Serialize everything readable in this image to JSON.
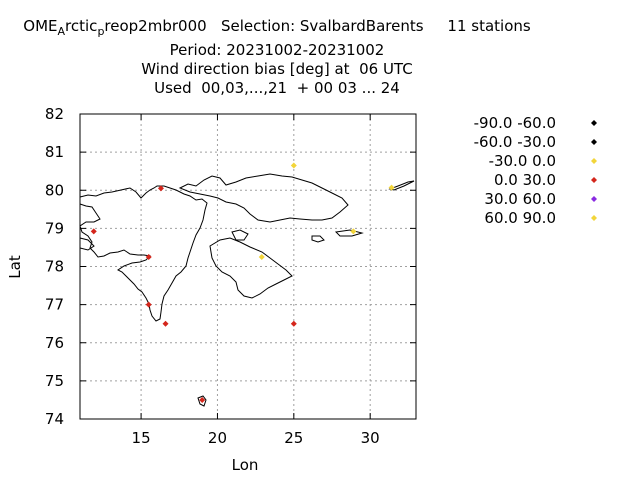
{
  "title": {
    "line1_a": "OME",
    "line1_sub_a": "A",
    "line1_b": "rctic",
    "line1_sub_b": "p",
    "line1_c": "reop2mbr000   Selection: SvalbardBarents     11 stations",
    "line2": "Period: 20231002-20231002",
    "line3": "Wind direction bias [deg] at  06 UTC",
    "line4": "Used  00,03,...,21  + 00 03 ... 24"
  },
  "chart_data": {
    "type": "scatter",
    "title": "Wind direction bias [deg] at  06 UTC",
    "xlabel": "Lon",
    "ylabel": "Lat",
    "xlim": [
      11,
      33
    ],
    "ylim": [
      74,
      82
    ],
    "xticks": [
      15,
      20,
      25,
      30
    ],
    "yticks": [
      74,
      75,
      76,
      77,
      78,
      79,
      80,
      81,
      82
    ],
    "grid": true,
    "legend_position": "right",
    "legend": [
      {
        "label": "-90.0 -60.0",
        "color": "#000000"
      },
      {
        "label": "-60.0 -30.0",
        "color": "#000000"
      },
      {
        "label": "-30.0 0.0",
        "color": "#f2d53a"
      },
      {
        "label": "0.0 30.0",
        "color": "#d4261c"
      },
      {
        "label": "30.0 60.0",
        "color": "#8a2be2"
      },
      {
        "label": "60.0 90.0",
        "color": "#f2d53a"
      }
    ],
    "points": [
      {
        "lon": 16.3,
        "lat": 80.05,
        "class": "0.0 30.0"
      },
      {
        "lon": 11.9,
        "lat": 78.92,
        "class": "0.0 30.0"
      },
      {
        "lon": 15.5,
        "lat": 78.25,
        "class": "0.0 30.0"
      },
      {
        "lon": 15.5,
        "lat": 77.0,
        "class": "0.0 30.0"
      },
      {
        "lon": 16.6,
        "lat": 76.5,
        "class": "0.0 30.0"
      },
      {
        "lon": 25.0,
        "lat": 76.5,
        "class": "0.0 30.0"
      },
      {
        "lon": 19.0,
        "lat": 74.5,
        "class": "0.0 30.0"
      },
      {
        "lon": 25.0,
        "lat": 80.65,
        "class": "60.0 90.0"
      },
      {
        "lon": 22.9,
        "lat": 78.25,
        "class": "60.0 90.0"
      },
      {
        "lon": 28.9,
        "lat": 78.92,
        "class": "60.0 90.0"
      },
      {
        "lon": 31.4,
        "lat": 80.07,
        "class": "60.0 90.0"
      }
    ]
  }
}
